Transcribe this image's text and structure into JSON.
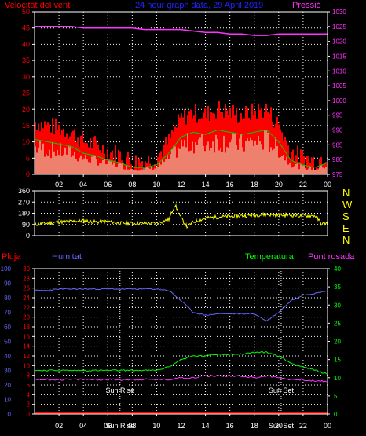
{
  "top_labels": {
    "wind": "Velocitat del vent",
    "title": "24 hour graph data, 29 April 2019",
    "pressure": "Pressió"
  },
  "bottom_labels": {
    "rain": "Pluja",
    "humidity": "Humitat",
    "temperature": "Temperatura",
    "dewpoint": "Punt rosada",
    "sunrise": "Sun Rise",
    "sunset": "Sun Set"
  },
  "x_ticks": [
    "02",
    "04",
    "06",
    "08",
    "10",
    "12",
    "14",
    "16",
    "18",
    "20",
    "22",
    "00"
  ],
  "colors": {
    "wind_gust": "#ff0000",
    "wind_avg": "#ffffff",
    "wind_line": "#00cc00",
    "pressure": "#ff33ff",
    "direction": "#ffff00",
    "humidity": "#6666ff",
    "temperature": "#00ff00",
    "dewpoint": "#ff33ff",
    "rain": "#ff0000",
    "grid": "#ffffff",
    "axis": "#ffffff"
  },
  "chart_data": [
    {
      "type": "area",
      "panel": "wind",
      "x_hours": [
        0,
        1,
        2,
        3,
        4,
        5,
        6,
        7,
        8,
        9,
        10,
        11,
        12,
        13,
        14,
        15,
        16,
        17,
        18,
        19,
        20,
        21,
        22,
        23,
        24
      ],
      "y_left_ticks": [
        "0",
        "5",
        "10",
        "15",
        "20",
        "25",
        "30",
        "35",
        "40",
        "45",
        "50"
      ],
      "ylim_left": [
        0,
        50
      ],
      "y_right_ticks": [
        "975",
        "980",
        "985",
        "990",
        "995",
        "1000",
        "1005",
        "1010",
        "1015",
        "1020",
        "1025",
        "1030"
      ],
      "ylim_right": [
        975,
        1030
      ],
      "series": [
        {
          "name": "Velocitat del vent",
          "values": [
            15,
            14,
            13,
            12,
            9,
            8,
            6,
            5,
            3,
            3,
            4,
            9,
            16,
            18,
            17,
            19,
            18,
            17,
            18,
            19,
            14,
            6,
            4,
            3,
            5
          ]
        },
        {
          "name": "Pressió",
          "values": [
            1025,
            1025,
            1025,
            1025,
            1024.5,
            1024.5,
            1024.5,
            1024.5,
            1024.5,
            1024,
            1024,
            1024,
            1024,
            1023.5,
            1023,
            1023,
            1022.5,
            1022.5,
            1022,
            1022,
            1022.5,
            1022.5,
            1022.5,
            1022.5,
            1022.5
          ]
        }
      ]
    },
    {
      "type": "line",
      "panel": "direction",
      "x_hours": [
        0,
        1,
        2,
        3,
        4,
        5,
        6,
        7,
        8,
        9,
        10,
        11,
        11.5,
        12,
        12.5,
        13,
        14,
        15,
        16,
        17,
        18,
        19,
        20,
        21,
        22,
        23,
        23.5,
        24
      ],
      "y_left_ticks": [
        "0",
        "90",
        "180",
        "270",
        "360"
      ],
      "ylim": [
        0,
        360
      ],
      "y_right_ticks": [
        "N",
        "W",
        "S",
        "E",
        "N"
      ],
      "series": [
        {
          "name": "",
          "values": [
            90,
            100,
            110,
            115,
            120,
            110,
            115,
            100,
            100,
            100,
            100,
            130,
            250,
            140,
            70,
            110,
            140,
            150,
            155,
            160,
            165,
            170,
            165,
            165,
            160,
            160,
            95,
            100
          ]
        }
      ]
    },
    {
      "type": "line",
      "panel": "weather",
      "x_hours": [
        0,
        1,
        2,
        3,
        4,
        5,
        6,
        7,
        8,
        9,
        10,
        11,
        12,
        13,
        14,
        15,
        16,
        17,
        18,
        19,
        20,
        21,
        22,
        23,
        24
      ],
      "y_humidity_ticks": [
        "0",
        "10",
        "20",
        "30",
        "40",
        "50",
        "60",
        "70",
        "80",
        "90",
        "100"
      ],
      "y_rain_ticks": [
        "0",
        "2",
        "4",
        "6",
        "8",
        "10",
        "12",
        "14",
        "16",
        "18",
        "20",
        "22",
        "24",
        "26",
        "28",
        "30"
      ],
      "y_temp_ticks": [
        "0",
        "5",
        "10",
        "15",
        "20",
        "25",
        "30",
        "35",
        "40"
      ],
      "series": [
        {
          "name": "Humitat",
          "values": [
            85,
            85,
            86,
            86,
            86,
            86,
            86,
            86,
            86,
            86,
            86,
            85,
            78,
            70,
            68,
            69,
            69,
            69,
            69,
            64,
            70,
            78,
            82,
            83,
            85
          ]
        },
        {
          "name": "Temperatura",
          "values": [
            12,
            12,
            12,
            12,
            12,
            12,
            12,
            12,
            12,
            12,
            12,
            13,
            15,
            16,
            16,
            16.5,
            16.5,
            16.5,
            17,
            17,
            16,
            14,
            13,
            12,
            11
          ]
        },
        {
          "name": "Punt rosada",
          "values": [
            9.5,
            9.5,
            9.5,
            9.5,
            9.5,
            9.5,
            9.5,
            9.5,
            9.5,
            9.5,
            9.5,
            9.5,
            10,
            10,
            10.5,
            10.5,
            10.5,
            10.5,
            10,
            10.5,
            10,
            9.5,
            9.5,
            9,
            9
          ]
        },
        {
          "name": "Pluja",
          "values": [
            0,
            0,
            0,
            0,
            0,
            0,
            0,
            0,
            0,
            0,
            0,
            0,
            0,
            0,
            0,
            0,
            0,
            0,
            0,
            0,
            0,
            0,
            0,
            0,
            0
          ]
        }
      ]
    }
  ]
}
